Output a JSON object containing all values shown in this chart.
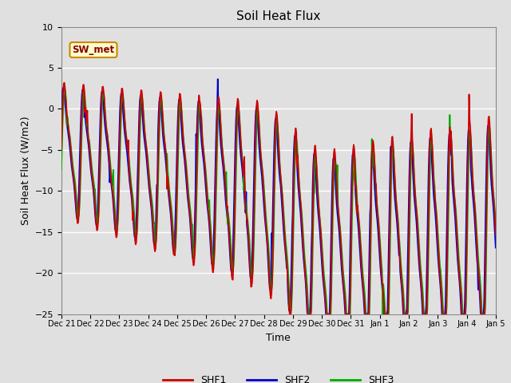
{
  "title": "Soil Heat Flux",
  "xlabel": "Time",
  "ylabel": "Soil Heat Flux (W/m2)",
  "ylim": [
    -25,
    10
  ],
  "yticks": [
    -25,
    -20,
    -15,
    -10,
    -5,
    0,
    5,
    10
  ],
  "bg_color": "#e0e0e0",
  "plot_bg_color": "#e0e0e0",
  "grid_color": "white",
  "line_colors": {
    "SHF1": "#cc0000",
    "SHF2": "#0000cc",
    "SHF3": "#00aa00"
  },
  "line_width": 1.3,
  "annotation_text": "SW_met",
  "annotation_bbox": {
    "facecolor": "#ffffcc",
    "edgecolor": "#cc8800"
  },
  "x_tick_labels": [
    "Dec 21",
    "Dec 22",
    "Dec 23",
    "Dec 24",
    "Dec 25",
    "Dec 26",
    "Dec 27",
    "Dec 28",
    "Dec 29",
    "Dec 30",
    "Dec 31",
    "Jan 1",
    "Jan 2",
    "Jan 3",
    "Jan 4",
    "Jan 5"
  ],
  "num_points": 720
}
